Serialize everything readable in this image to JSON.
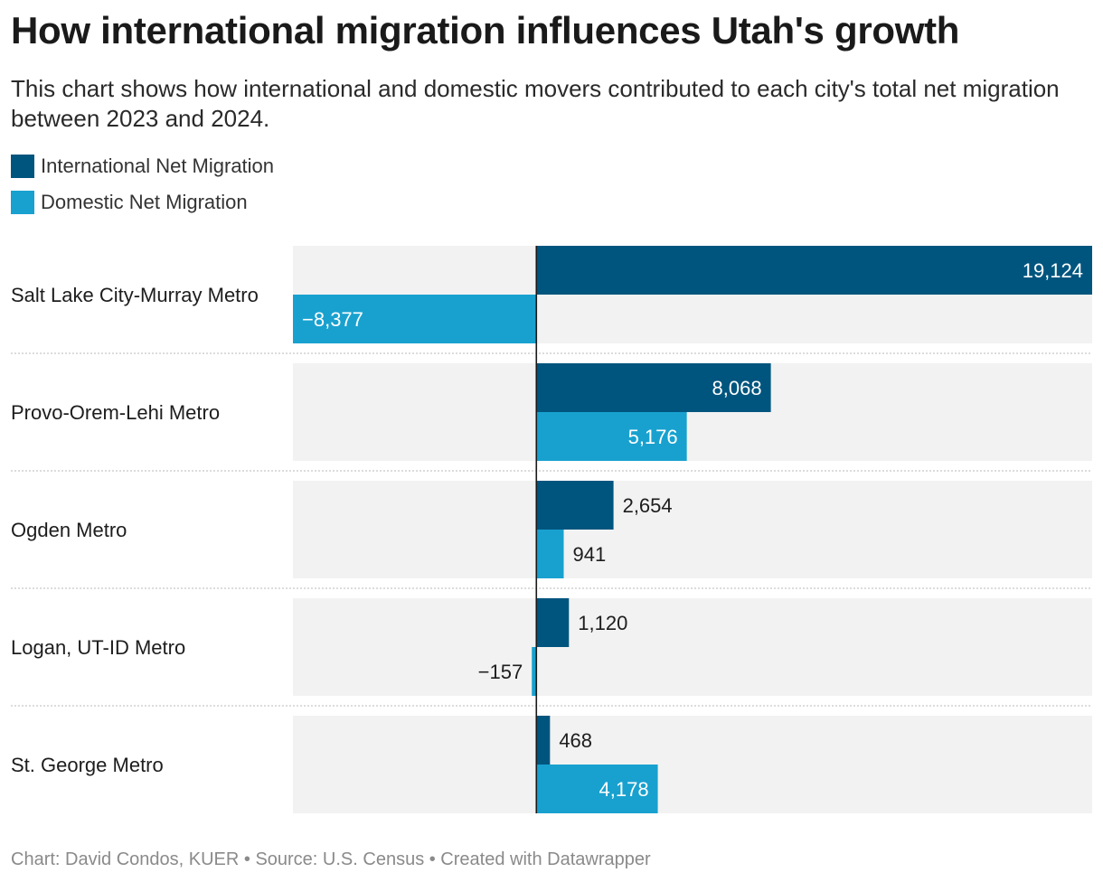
{
  "title": "How international migration influences Utah's growth",
  "subtitle": "This chart shows how international and domestic movers contributed to each city's total net migration between 2023 and 2024.",
  "legend": {
    "items": [
      {
        "label": "International Net Migration",
        "color": "#00557e"
      },
      {
        "label": "Domestic Net Migration",
        "color": "#18a1cf"
      }
    ]
  },
  "footer": "Chart: David Condos, KUER • Source: U.S. Census • Created with Datawrapper",
  "chart_data": {
    "type": "bar",
    "orientation": "horizontal",
    "grouped": true,
    "categories": [
      "Salt Lake City-Murray Metro",
      "Provo-Orem-Lehi Metro",
      "Ogden Metro",
      "Logan, UT-ID Metro",
      "St. George Metro"
    ],
    "series": [
      {
        "name": "International Net Migration",
        "color": "#00557e",
        "values": [
          19124,
          8068,
          2654,
          1120,
          468
        ],
        "labels": [
          "19,124",
          "8,068",
          "2,654",
          "1,120",
          "468"
        ]
      },
      {
        "name": "Domestic Net Migration",
        "color": "#18a1cf",
        "values": [
          -8377,
          5176,
          941,
          -157,
          4178
        ],
        "labels": [
          "−8,377",
          "5,176",
          "941",
          "−157",
          "4,178"
        ]
      }
    ],
    "xlim": [
      -8377,
      19124
    ],
    "background_band_color": "#f2f2f2",
    "grid": false,
    "legend_position": "top-left"
  }
}
